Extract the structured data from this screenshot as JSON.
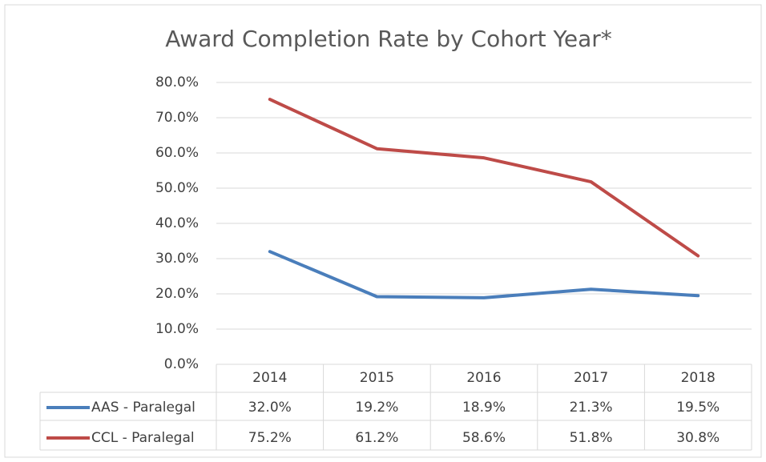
{
  "chart_data": {
    "type": "line",
    "title": "Award Completion Rate by Cohort Year*",
    "categories": [
      "2014",
      "2015",
      "2016",
      "2017",
      "2018"
    ],
    "series": [
      {
        "name": "AAS - Paralegal",
        "color": "#4a7ebb",
        "values": [
          32.0,
          19.2,
          18.9,
          21.3,
          19.5
        ],
        "value_labels": [
          "32.0%",
          "19.2%",
          "18.9%",
          "21.3%",
          "19.5%"
        ]
      },
      {
        "name": "CCL - Paralegal",
        "color": "#be4b48",
        "values": [
          75.2,
          61.2,
          58.6,
          51.8,
          30.8
        ],
        "value_labels": [
          "75.2%",
          "61.2%",
          "58.6%",
          "51.8%",
          "30.8%"
        ]
      }
    ],
    "ylim": [
      0,
      80
    ],
    "yticks": [
      {
        "value": 0,
        "label": "0.0%"
      },
      {
        "value": 10,
        "label": "10.0%"
      },
      {
        "value": 20,
        "label": "20.0%"
      },
      {
        "value": 30,
        "label": "30.0%"
      },
      {
        "value": 40,
        "label": "40.0%"
      },
      {
        "value": 50,
        "label": "50.0%"
      },
      {
        "value": 60,
        "label": "60.0%"
      },
      {
        "value": 70,
        "label": "70.0%"
      },
      {
        "value": 80,
        "label": "80.0%"
      }
    ],
    "grid": true
  }
}
